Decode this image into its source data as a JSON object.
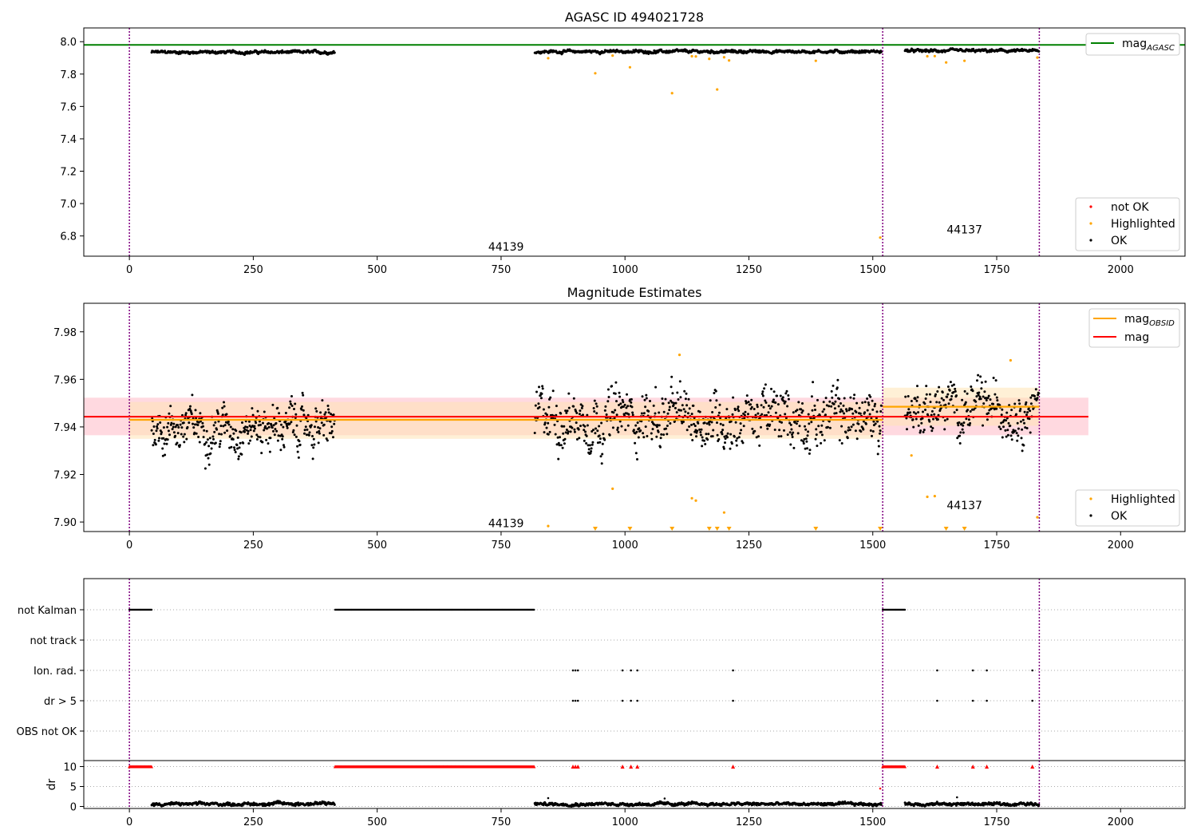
{
  "colors": {
    "agasc_line": "#008000",
    "obsid_line": "#ffa500",
    "mag_line": "#ff0000",
    "ok": "#000000",
    "highlighted": "#ffa500",
    "not_ok": "#ff0000",
    "obs_boundary": "#800080",
    "mag_band": "#ffc0cb",
    "obsid_band": "#ffe4b5"
  },
  "chart_data": [
    {
      "type": "scatter",
      "title": "AGASC ID 494021728",
      "xlabel": "",
      "ylabel": "",
      "xlim": [
        -92,
        2130
      ],
      "ylim": [
        6.675,
        8.085
      ],
      "xticks": [
        0,
        250,
        500,
        750,
        1000,
        1250,
        1500,
        1750,
        2000
      ],
      "yticks": [
        6.8,
        7.0,
        7.2,
        7.4,
        7.6,
        7.8,
        8.0
      ],
      "ytick_labels": [
        "6.8",
        "7.0",
        "7.2",
        "7.4",
        "7.6",
        "7.8",
        "8.0"
      ],
      "grid": false,
      "legend_lines": {
        "position": "top-right",
        "entries": [
          {
            "label": "mag",
            "subscript": "AGASC",
            "style": "line"
          }
        ]
      },
      "legend_points": {
        "position": "bottom-right",
        "entries": [
          "not OK",
          "Highlighted",
          "OK"
        ]
      },
      "hlines": [
        {
          "name": "mag_AGASC",
          "y": 7.98
        }
      ],
      "obs_boundaries": [
        0,
        1520,
        1836
      ],
      "observation_labels": [
        {
          "text": "44139",
          "x": 760,
          "y": 6.735
        },
        {
          "text": "44137",
          "x": 1685,
          "y": 6.84
        }
      ],
      "ok_segments": [
        {
          "x0": 45,
          "x1": 415,
          "y": 7.94,
          "jitter": 0.012
        },
        {
          "x0": 818,
          "x1": 1518,
          "y": 7.944,
          "jitter": 0.015
        },
        {
          "x0": 1565,
          "x1": 1836,
          "y": 7.948,
          "jitter": 0.013
        }
      ],
      "highlighted": [
        [
          845,
          7.898
        ],
        [
          940,
          7.805
        ],
        [
          975,
          7.914
        ],
        [
          1010,
          7.842
        ],
        [
          1095,
          7.682
        ],
        [
          1135,
          7.91
        ],
        [
          1143,
          7.909
        ],
        [
          1170,
          7.894
        ],
        [
          1186,
          7.705
        ],
        [
          1200,
          7.904
        ],
        [
          1210,
          7.884
        ],
        [
          1385,
          7.882
        ],
        [
          1515,
          6.79
        ],
        [
          1610,
          7.91
        ],
        [
          1625,
          7.911
        ],
        [
          1648,
          7.872
        ],
        [
          1685,
          7.882
        ],
        [
          1832,
          7.902
        ]
      ],
      "not_ok": []
    },
    {
      "type": "scatter",
      "title": "Magnitude Estimates",
      "xlabel": "",
      "ylabel": "",
      "xlim": [
        -92,
        2130
      ],
      "ylim": [
        7.896,
        7.992
      ],
      "xticks": [
        0,
        250,
        500,
        750,
        1000,
        1250,
        1500,
        1750,
        2000
      ],
      "yticks": [
        7.9,
        7.92,
        7.94,
        7.96,
        7.98
      ],
      "ytick_labels": [
        "7.90",
        "7.92",
        "7.94",
        "7.96",
        "7.98"
      ],
      "grid": false,
      "legend_lines": {
        "position": "top-right",
        "entries": [
          {
            "label": "mag",
            "subscript": "OBSID",
            "style": "line",
            "color": "obsid_line"
          },
          {
            "label": "mag",
            "subscript": "",
            "style": "line",
            "color": "mag_line"
          }
        ]
      },
      "legend_points": {
        "position": "bottom-right",
        "entries": [
          "Highlighted",
          "OK"
        ]
      },
      "mag_line": {
        "y": 7.9443,
        "x0": -92,
        "x1": 1935,
        "band": [
          7.9365,
          7.9523
        ]
      },
      "obsid_lines": [
        {
          "x0": 0,
          "x1": 1520,
          "y": 7.943,
          "band": [
            7.935,
            7.9505
          ]
        },
        {
          "x0": 1520,
          "x1": 1836,
          "y": 7.9485,
          "band": [
            7.9405,
            7.9565
          ]
        }
      ],
      "obs_boundaries": [
        0,
        1520,
        1836
      ],
      "observation_labels": [
        {
          "text": "44139",
          "x": 760,
          "y": 7.8995
        },
        {
          "text": "44137",
          "x": 1685,
          "y": 7.907
        }
      ],
      "ok_segments": [
        {
          "x0": 45,
          "x1": 415,
          "y": 7.94,
          "jitter": 0.012
        },
        {
          "x0": 818,
          "x1": 1518,
          "y": 7.944,
          "jitter": 0.015
        },
        {
          "x0": 1565,
          "x1": 1836,
          "y": 7.948,
          "jitter": 0.013
        }
      ],
      "highlighted": [
        [
          845,
          7.8983
        ],
        [
          975,
          7.914
        ],
        [
          1110,
          7.9703
        ],
        [
          1135,
          7.91
        ],
        [
          1143,
          7.909
        ],
        [
          1200,
          7.904
        ],
        [
          1578,
          7.928
        ],
        [
          1610,
          7.9106
        ],
        [
          1625,
          7.9109
        ],
        [
          1778,
          7.968
        ],
        [
          1832,
          7.902
        ]
      ],
      "below_axis_markers": [
        940,
        1010,
        1095,
        1170,
        1186,
        1210,
        1385,
        1515,
        1648,
        1685
      ]
    },
    {
      "type": "scatter",
      "title": "",
      "xlabel": "",
      "ylabel": "",
      "xlim": [
        -92,
        2130
      ],
      "flag_rows": [
        "not Kalman",
        "not track",
        "Ion. rad.",
        "dr > 5",
        "OBS not OK"
      ],
      "grid": "horizontal-dotted",
      "obs_boundaries": [
        0,
        1520,
        1836
      ],
      "flags": {
        "not Kalman": {
          "ranges": [
            [
              0,
              45
            ],
            [
              415,
              818
            ],
            [
              1520,
              1565
            ]
          ],
          "points": []
        },
        "not track": {
          "ranges": [],
          "points": []
        },
        "Ion. rad.": {
          "ranges": [],
          "points": [
            895,
            900,
            905,
            995,
            1012,
            1025,
            1218,
            1630,
            1702,
            1730,
            1822
          ]
        },
        "dr > 5": {
          "ranges": [],
          "points": [
            895,
            900,
            905,
            995,
            1012,
            1025,
            1218,
            1630,
            1702,
            1730,
            1822
          ]
        },
        "OBS not OK": {
          "ranges": [],
          "points": []
        }
      }
    },
    {
      "type": "scatter",
      "title": "",
      "xlabel": "",
      "ylabel": "dr",
      "xlim": [
        -92,
        2130
      ],
      "ylim": [
        -0.5,
        11.5
      ],
      "xticks": [
        0,
        250,
        500,
        750,
        1000,
        1250,
        1500,
        1750,
        2000
      ],
      "yticks": [
        0,
        5,
        10
      ],
      "ytick_labels": [
        "0",
        "5",
        "10"
      ],
      "grid": "horizontal-dotted",
      "obs_boundaries": [
        0,
        1520,
        1836
      ],
      "capped_value": 10,
      "capped_ranges": [
        [
          0,
          45
        ],
        [
          415,
          818
        ],
        [
          1520,
          1565
        ]
      ],
      "capped_points": [
        895,
        900,
        905,
        995,
        1012,
        1025,
        1218,
        1630,
        1702,
        1730,
        1822
      ],
      "ok_segments": [
        {
          "x0": 45,
          "x1": 270,
          "y": 0.6,
          "jitter": 0.5
        },
        {
          "x0": 270,
          "x1": 415,
          "y": 0.7,
          "jitter": 0.6
        },
        {
          "x0": 818,
          "x1": 1518,
          "y": 0.6,
          "jitter": 0.5
        },
        {
          "x0": 1565,
          "x1": 1836,
          "y": 0.6,
          "jitter": 0.5
        }
      ],
      "outliers": [
        [
          845,
          2.1
        ],
        [
          1080,
          2.0
        ],
        [
          1670,
          2.3
        ],
        [
          1515,
          4.5
        ]
      ]
    }
  ]
}
